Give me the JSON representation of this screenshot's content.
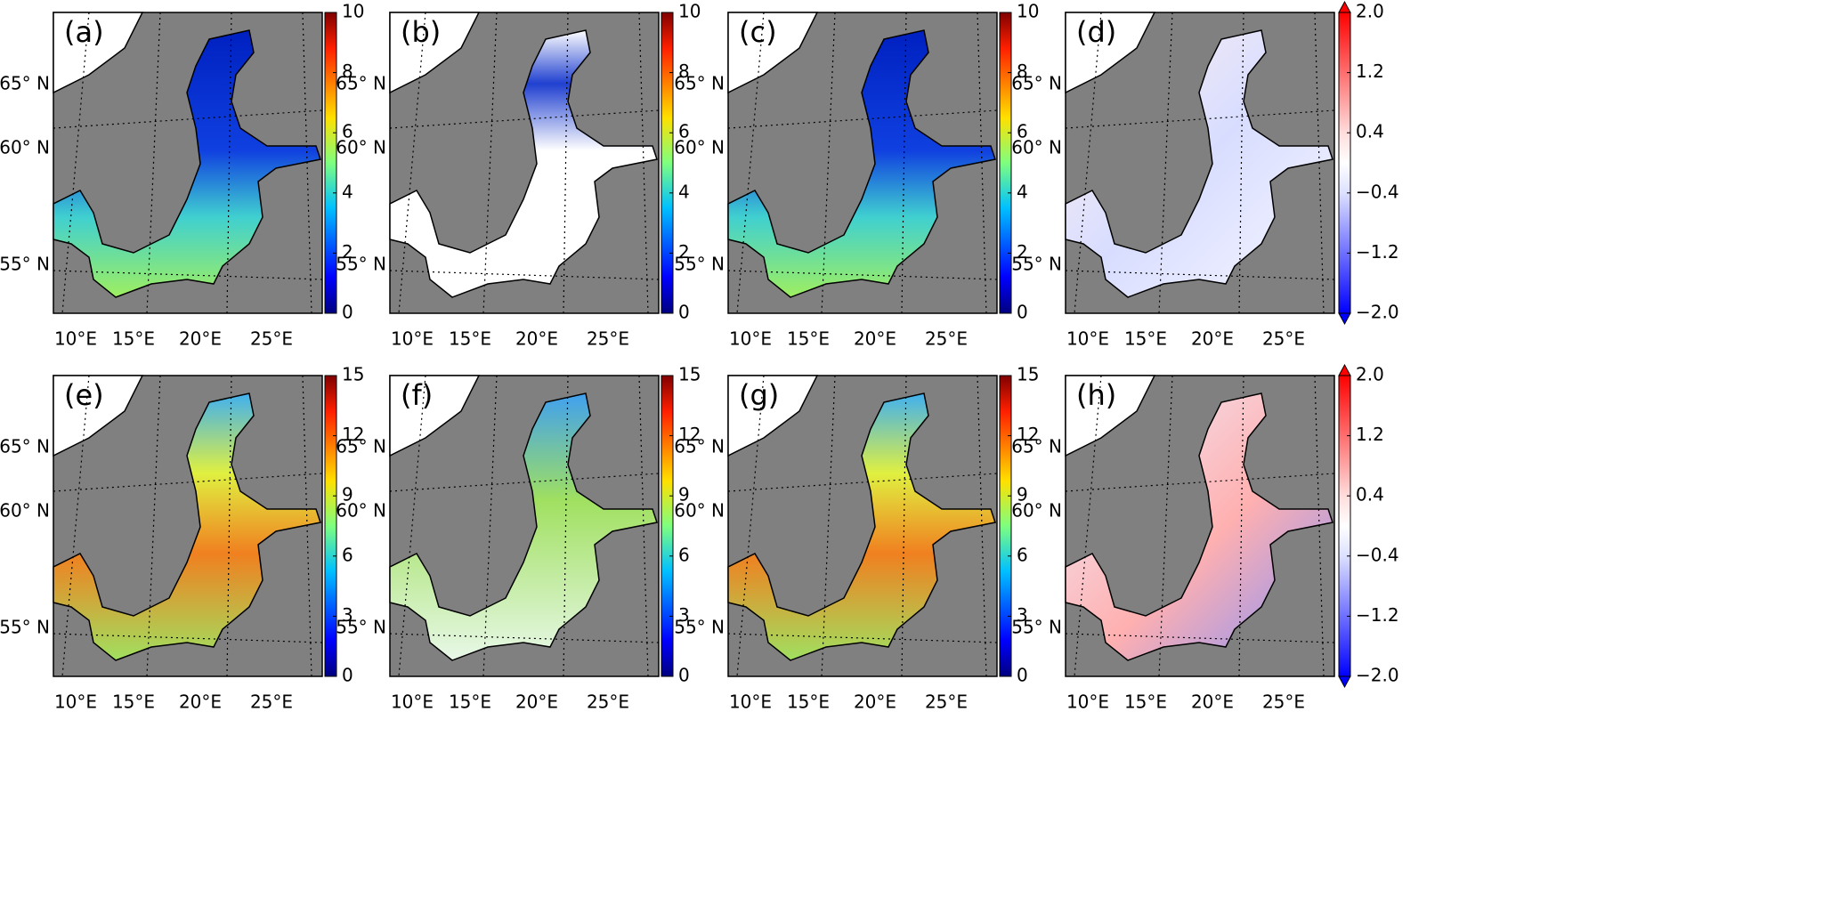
{
  "panels": [
    {
      "label": "(a)",
      "colorbar": {
        "colormap": "jet",
        "lim": [
          0,
          10
        ],
        "ticks": [
          0,
          2,
          4,
          6,
          8,
          10
        ]
      }
    },
    {
      "label": "(b)",
      "colorbar": {
        "colormap": "jet",
        "lim": [
          0,
          10
        ],
        "ticks": [
          0,
          2,
          4,
          6,
          8,
          10
        ]
      }
    },
    {
      "label": "(c)",
      "colorbar": {
        "colormap": "jet",
        "lim": [
          0,
          10
        ],
        "ticks": [
          0,
          2,
          4,
          6,
          8,
          10
        ]
      }
    },
    {
      "label": "(d)",
      "colorbar": {
        "colormap": "bwr",
        "lim": [
          -2,
          2
        ],
        "extend": "both",
        "ticks": [
          {
            "value": -2,
            "label": "−2.0"
          },
          {
            "value": -1.2,
            "label": "−1.2"
          },
          {
            "value": -0.4,
            "label": "−0.4"
          },
          0.4,
          1.2,
          {
            "value": 2,
            "label": "2.0"
          }
        ]
      }
    },
    {
      "label": "(e)",
      "colorbar": {
        "colormap": "jet",
        "lim": [
          0,
          15
        ],
        "ticks": [
          0,
          3,
          6,
          9,
          12,
          15
        ]
      }
    },
    {
      "label": "(f)",
      "colorbar": {
        "colormap": "jet",
        "lim": [
          0,
          15
        ],
        "ticks": [
          0,
          3,
          6,
          9,
          12,
          15
        ]
      }
    },
    {
      "label": "(g)",
      "colorbar": {
        "colormap": "jet",
        "lim": [
          0,
          15
        ],
        "ticks": [
          0,
          3,
          6,
          9,
          12,
          15
        ]
      }
    },
    {
      "label": "(h)",
      "colorbar": {
        "colormap": "bwr",
        "lim": [
          -2,
          2
        ],
        "extend": "both",
        "ticks": [
          {
            "value": -2,
            "label": "−2.0"
          },
          {
            "value": -1.2,
            "label": "−1.2"
          },
          {
            "value": -0.4,
            "label": "−0.4"
          },
          0.4,
          1.2,
          {
            "value": 2,
            "label": "2.0"
          }
        ]
      }
    }
  ],
  "lat_labels": [
    "65° N",
    "60° N",
    "55° N"
  ],
  "lon_labels": [
    "10°E",
    "15°E",
    "20°E",
    "25°E"
  ]
}
